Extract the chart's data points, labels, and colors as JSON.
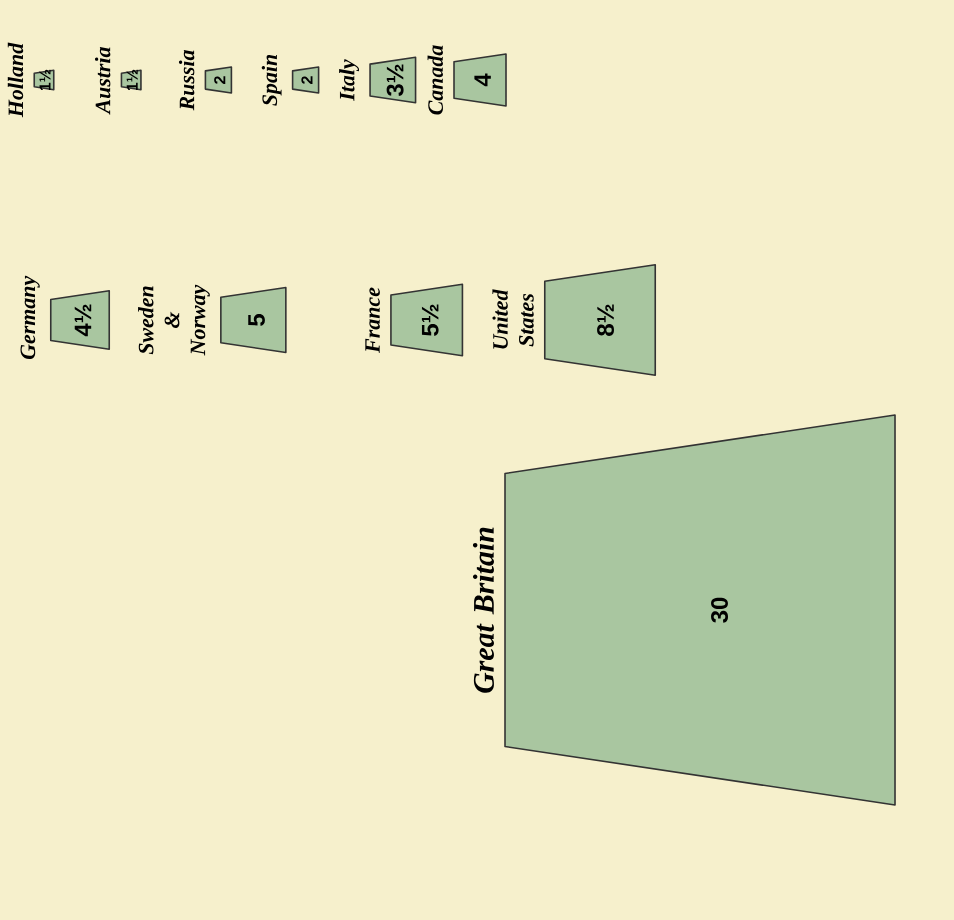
{
  "chart_data": {
    "type": "other",
    "categories": [
      "Holland",
      "Austria",
      "Russia",
      "Spain",
      "Italy",
      "Canada",
      "Germany",
      "Sweden & Norway",
      "France",
      "United States",
      "Great Britain"
    ],
    "values": [
      1.5,
      1.5,
      2,
      2,
      3.5,
      4,
      4.5,
      5,
      5.5,
      8.5,
      30
    ],
    "value_labels": [
      "1½",
      "1½",
      "2",
      "2",
      "3½",
      "4",
      "4½",
      "5",
      "5½",
      "8½",
      "30"
    ],
    "color": "#a9c6a0"
  }
}
